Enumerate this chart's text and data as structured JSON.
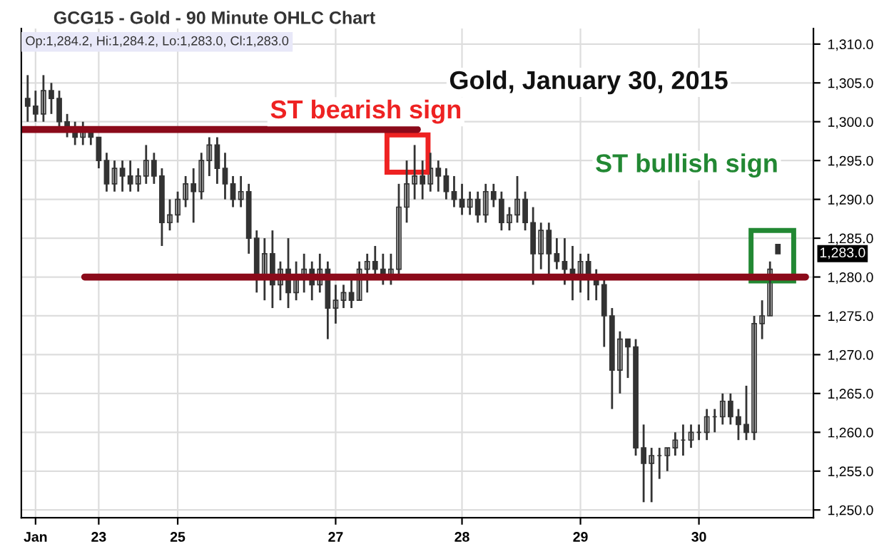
{
  "chart_data": {
    "type": "candlestick",
    "title": "GCG15 - Gold - 90 Minute OHLC Chart",
    "subtitle": "Op:1,284.2, Hi:1,284.2, Lo:1,283.0, Cl:1,283.0",
    "annotations": [
      "Gold, January 30, 2015",
      "ST bearish sign",
      "ST bullish sign",
      "1,283.0"
    ],
    "categories": [
      null,
      "Jan",
      null,
      null,
      null,
      null,
      null,
      null,
      null,
      "23",
      null,
      null,
      null,
      null,
      null,
      null,
      null,
      null,
      null,
      "25",
      null,
      null,
      null,
      null,
      null,
      null,
      null,
      null,
      null,
      null,
      null,
      null,
      null,
      null,
      null,
      null,
      null,
      null,
      null,
      "27",
      null,
      null,
      null,
      null,
      null,
      null,
      null,
      null,
      null,
      null,
      null,
      null,
      null,
      null,
      null,
      "28",
      null,
      null,
      null,
      null,
      null,
      null,
      null,
      null,
      null,
      null,
      null,
      null,
      null,
      null,
      "29",
      null,
      null,
      null,
      null,
      null,
      null,
      null,
      null,
      null,
      null,
      null,
      null,
      null,
      null,
      "30",
      null,
      null,
      null,
      null,
      null,
      null,
      null,
      null,
      null,
      null
    ],
    "ohlc": [
      [
        1303,
        1306,
        1300,
        1302
      ],
      [
        1302,
        1304,
        1300,
        1301
      ],
      [
        1301,
        1306,
        1300,
        1304
      ],
      [
        1304,
        1305,
        1301,
        1303
      ],
      [
        1303,
        1304,
        1299,
        1300
      ],
      [
        1300,
        1301,
        1298,
        1299
      ],
      [
        1299,
        1300,
        1297,
        1298
      ],
      [
        1298,
        1300,
        1297,
        1299
      ],
      [
        1299,
        1299,
        1297,
        1298
      ],
      [
        1298,
        1298,
        1294,
        1295
      ],
      [
        1295,
        1296,
        1291,
        1292
      ],
      [
        1292,
        1295,
        1291,
        1294
      ],
      [
        1294,
        1295,
        1291,
        1293
      ],
      [
        1293,
        1295,
        1291,
        1292
      ],
      [
        1292,
        1294,
        1291,
        1293
      ],
      [
        1293,
        1297,
        1292,
        1295
      ],
      [
        1295,
        1296,
        1292,
        1293
      ],
      [
        1293,
        1294,
        1284,
        1287
      ],
      [
        1287,
        1290,
        1286,
        1288
      ],
      [
        1288,
        1291,
        1287,
        1290
      ],
      [
        1290,
        1293,
        1289,
        1292
      ],
      [
        1292,
        1294,
        1287,
        1291
      ],
      [
        1291,
        1296,
        1290,
        1295
      ],
      [
        1295,
        1298,
        1293,
        1297
      ],
      [
        1297,
        1298,
        1292,
        1294
      ],
      [
        1294,
        1296,
        1290,
        1292
      ],
      [
        1292,
        1293,
        1289,
        1290
      ],
      [
        1290,
        1293,
        1289,
        1291
      ],
      [
        1291,
        1292,
        1283,
        1285
      ],
      [
        1285,
        1286,
        1278,
        1280
      ],
      [
        1280,
        1285,
        1277,
        1283
      ],
      [
        1283,
        1286,
        1276,
        1279
      ],
      [
        1279,
        1282,
        1277,
        1281
      ],
      [
        1281,
        1285,
        1276,
        1278
      ],
      [
        1278,
        1282,
        1277,
        1280
      ],
      [
        1280,
        1283,
        1278,
        1281
      ],
      [
        1281,
        1282,
        1277,
        1279
      ],
      [
        1279,
        1283,
        1278,
        1281
      ],
      [
        1281,
        1282,
        1272,
        1276
      ],
      [
        1276,
        1279,
        1274,
        1277
      ],
      [
        1277,
        1279,
        1276,
        1278
      ],
      [
        1278,
        1280,
        1276,
        1277
      ],
      [
        1277,
        1282,
        1277,
        1281
      ],
      [
        1281,
        1283,
        1278,
        1282
      ],
      [
        1282,
        1284,
        1280,
        1281
      ],
      [
        1281,
        1283,
        1279,
        1280
      ],
      [
        1280,
        1283,
        1279,
        1281
      ],
      [
        1281,
        1292,
        1280,
        1289
      ],
      [
        1289,
        1295,
        1287,
        1292
      ],
      [
        1292,
        1297,
        1290,
        1293
      ],
      [
        1293,
        1295,
        1290,
        1292
      ],
      [
        1292,
        1296,
        1291,
        1294
      ],
      [
        1294,
        1295,
        1291,
        1293
      ],
      [
        1293,
        1294,
        1290,
        1291
      ],
      [
        1291,
        1293,
        1289,
        1290
      ],
      [
        1290,
        1292,
        1288,
        1289
      ],
      [
        1289,
        1291,
        1288,
        1290
      ],
      [
        1290,
        1291,
        1287,
        1288
      ],
      [
        1288,
        1292,
        1287,
        1291
      ],
      [
        1291,
        1292,
        1289,
        1290
      ],
      [
        1290,
        1291,
        1286,
        1287
      ],
      [
        1287,
        1289,
        1286,
        1288
      ],
      [
        1288,
        1293,
        1287,
        1290
      ],
      [
        1290,
        1291,
        1286,
        1287
      ],
      [
        1287,
        1289,
        1279,
        1283
      ],
      [
        1283,
        1287,
        1281,
        1286
      ],
      [
        1286,
        1287,
        1280,
        1283
      ],
      [
        1283,
        1285,
        1281,
        1282
      ],
      [
        1282,
        1285,
        1279,
        1281
      ],
      [
        1281,
        1284,
        1277,
        1280
      ],
      [
        1280,
        1283,
        1278,
        1282
      ],
      [
        1282,
        1283,
        1277,
        1280
      ],
      [
        1280,
        1281,
        1277,
        1279
      ],
      [
        1279,
        1280,
        1271,
        1275
      ],
      [
        1275,
        1276,
        1263,
        1268
      ],
      [
        1268,
        1273,
        1265,
        1272
      ],
      [
        1272,
        1272,
        1267,
        1271
      ],
      [
        1271,
        1272,
        1257,
        1258
      ],
      [
        1258,
        1261,
        1251,
        1256
      ],
      [
        1256,
        1258,
        1251,
        1257
      ],
      [
        1257,
        1258,
        1254,
        1257
      ],
      [
        1257,
        1258,
        1255,
        1258
      ],
      [
        1258,
        1260,
        1257,
        1259
      ],
      [
        1259,
        1261,
        1257,
        1259
      ],
      [
        1259,
        1261,
        1258,
        1260
      ],
      [
        1260,
        1261,
        1259,
        1260
      ],
      [
        1260,
        1263,
        1259,
        1262
      ],
      [
        1262,
        1263,
        1260,
        1262
      ],
      [
        1262,
        1265,
        1261,
        1264
      ],
      [
        1264,
        1265,
        1261,
        1262
      ],
      [
        1262,
        1263,
        1259,
        1261
      ],
      [
        1261,
        1266,
        1259,
        1260
      ],
      [
        1260,
        1275,
        1259,
        1274
      ],
      [
        1274,
        1277,
        1272,
        1275
      ],
      [
        1275,
        1282,
        1275,
        1281
      ],
      [
        1284.2,
        1284.2,
        1283.0,
        1283.0
      ]
    ],
    "color": "#333333",
    "ylim": [
      1249,
      1312
    ],
    "yticks": [
      {
        "value": 1250,
        "label": "1,250.0"
      },
      {
        "value": 1255,
        "label": "1,255.0"
      },
      {
        "value": 1260,
        "label": "1,260.0"
      },
      {
        "value": 1265,
        "label": "1,265.0"
      },
      {
        "value": 1270,
        "label": "1,270.0"
      },
      {
        "value": 1275,
        "label": "1,275.0"
      },
      {
        "value": 1280,
        "label": "1,280.0"
      },
      {
        "value": 1285,
        "label": "1,285.0"
      },
      {
        "value": 1290,
        "label": "1,290.0"
      },
      {
        "value": 1295,
        "label": "1,295.0"
      },
      {
        "value": 1300,
        "label": "1,300.0"
      },
      {
        "value": 1305,
        "label": "1,305.0"
      },
      {
        "value": 1310,
        "label": "1,310.0"
      }
    ],
    "ref_lines": [
      {
        "axis": "y",
        "value": 1299,
        "color": "#8b0a1a"
      },
      {
        "axis": "y",
        "value": 1280,
        "color": "#8b0a1a"
      }
    ],
    "grid": true
  }
}
